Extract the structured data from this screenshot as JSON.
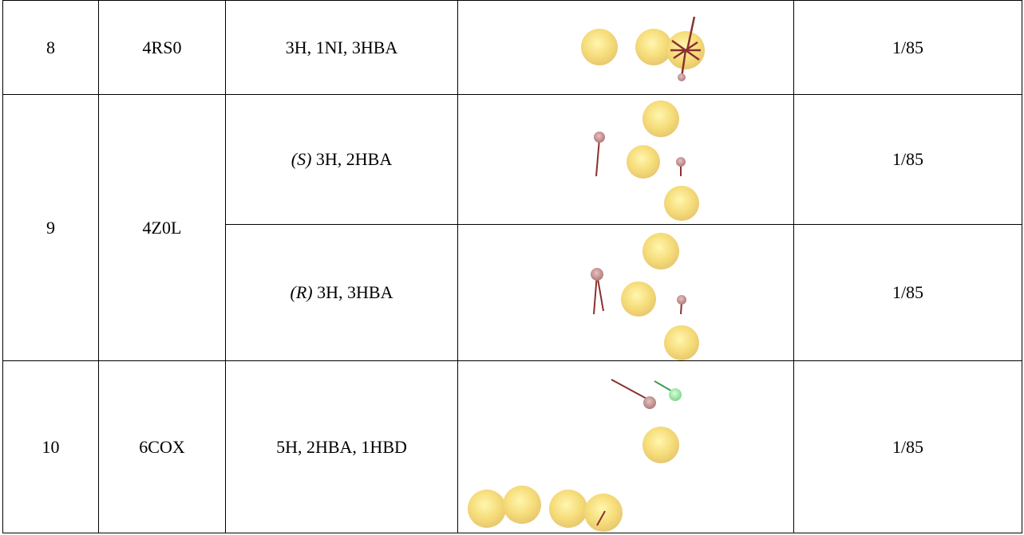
{
  "table": {
    "rows": [
      {
        "id": "8",
        "pdb": "4RS0",
        "subrows": [
          {
            "features": "3H, 1NI, 3HBA",
            "ratio": "1/85"
          }
        ]
      },
      {
        "id": "9",
        "pdb": "4Z0L",
        "subrows": [
          {
            "stereo": "(S)",
            "features": "3H, 2HBA",
            "ratio": "1/85"
          },
          {
            "stereo": "(R)",
            "features": "3H, 3HBA",
            "ratio": "1/85"
          }
        ]
      },
      {
        "id": "10",
        "pdb": "6COX",
        "subrows": [
          {
            "features": "5H, 2HBA, 1HBD",
            "ratio": "1/85"
          }
        ]
      }
    ]
  }
}
